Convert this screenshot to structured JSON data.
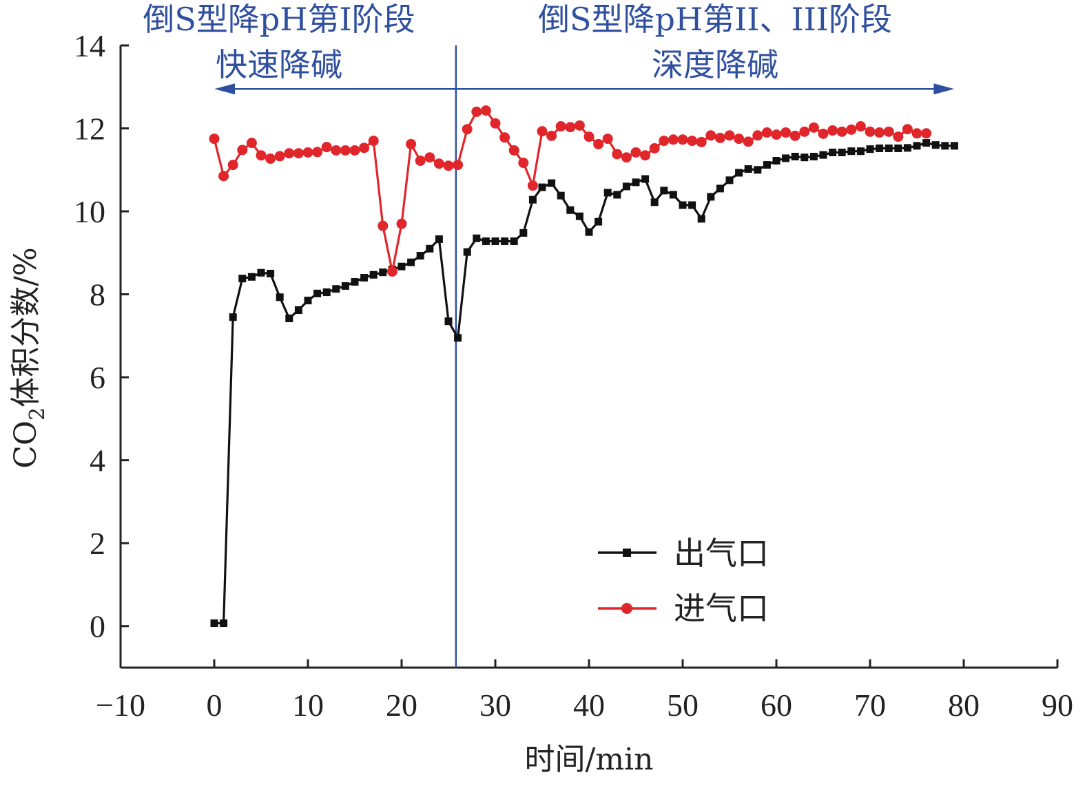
{
  "chart_data": {
    "type": "line",
    "xlabel": "时间/min",
    "ylabel": {
      "main": "CO",
      "sub": "2",
      "rest": "体积分数/%"
    },
    "xlim": [
      -10,
      90
    ],
    "ylim": [
      -1,
      14
    ],
    "xticks": [
      -10,
      0,
      10,
      20,
      30,
      40,
      50,
      60,
      70,
      80,
      90
    ],
    "yticks": [
      0,
      2,
      4,
      6,
      8,
      10,
      12,
      14
    ],
    "xtick_labels": [
      "−10",
      "0",
      "10",
      "20",
      "30",
      "40",
      "50",
      "60",
      "70",
      "80",
      "90"
    ],
    "ytick_labels": [
      "0",
      "2",
      "4",
      "6",
      "8",
      "10",
      "12",
      "14"
    ],
    "divider_x": 25.8,
    "annotations": {
      "left_line1": "倒S型降pH第I阶段",
      "left_line2": "快速降碱",
      "right_line1": "倒S型降pH第II、III阶段",
      "right_line2": "深度降碱"
    },
    "arrow": {
      "y": 12.95,
      "x_start": 0,
      "x_end": 79,
      "color": "#2f4f9f"
    },
    "legend_placement": "bottom-right",
    "series": [
      {
        "name": "出气口",
        "color": "#111111",
        "marker": "square",
        "x": [
          0,
          1,
          2,
          3,
          4,
          5,
          6,
          7,
          8,
          9,
          10,
          11,
          12,
          13,
          14,
          15,
          16,
          17,
          18,
          19,
          20,
          21,
          22,
          23,
          24,
          25,
          26,
          27,
          28,
          29,
          30,
          31,
          32,
          33,
          34,
          35,
          36,
          37,
          38,
          39,
          40,
          41,
          42,
          43,
          44,
          45,
          46,
          47,
          48,
          49,
          50,
          51,
          52,
          53,
          54,
          55,
          56,
          57,
          58,
          59,
          60,
          61,
          62,
          63,
          64,
          65,
          66,
          67,
          68,
          69,
          70,
          71,
          72,
          73,
          74,
          75,
          76,
          77,
          78,
          79
        ],
        "y": [
          0.07,
          0.07,
          7.45,
          8.38,
          8.42,
          8.52,
          8.5,
          7.93,
          7.42,
          7.62,
          7.85,
          8.02,
          8.05,
          8.13,
          8.2,
          8.3,
          8.4,
          8.47,
          8.53,
          8.6,
          8.67,
          8.77,
          8.93,
          9.1,
          9.33,
          7.35,
          6.95,
          9.02,
          9.35,
          9.28,
          9.28,
          9.28,
          9.28,
          9.48,
          10.28,
          10.58,
          10.68,
          10.38,
          10.03,
          9.88,
          9.5,
          9.75,
          10.45,
          10.4,
          10.6,
          10.7,
          10.78,
          10.22,
          10.5,
          10.4,
          10.15,
          10.15,
          9.82,
          10.35,
          10.55,
          10.75,
          10.93,
          11.02,
          11.0,
          11.12,
          11.22,
          11.28,
          11.32,
          11.3,
          11.32,
          11.36,
          11.42,
          11.42,
          11.45,
          11.45,
          11.5,
          11.52,
          11.52,
          11.52,
          11.53,
          11.58,
          11.65,
          11.6,
          11.58,
          11.58
        ]
      },
      {
        "name": "进气口",
        "color": "#e0262b",
        "marker": "circle",
        "x": [
          0,
          1,
          2,
          3,
          4,
          5,
          6,
          7,
          8,
          9,
          10,
          11,
          12,
          13,
          14,
          15,
          16,
          17,
          18,
          19,
          20,
          21,
          22,
          23,
          24,
          25,
          26,
          27,
          28,
          29,
          30,
          31,
          32,
          33,
          34,
          35,
          36,
          37,
          38,
          39,
          40,
          41,
          42,
          43,
          44,
          45,
          46,
          47,
          48,
          49,
          50,
          51,
          52,
          53,
          54,
          55,
          56,
          57,
          58,
          59,
          60,
          61,
          62,
          63,
          64,
          65,
          66,
          67,
          68,
          69,
          70,
          71,
          72,
          73,
          74,
          75,
          76
        ],
        "y": [
          11.75,
          10.85,
          11.12,
          11.48,
          11.65,
          11.35,
          11.27,
          11.33,
          11.4,
          11.4,
          11.42,
          11.43,
          11.55,
          11.47,
          11.47,
          11.47,
          11.53,
          11.7,
          9.65,
          8.55,
          9.7,
          11.62,
          11.22,
          11.3,
          11.15,
          11.1,
          11.12,
          11.98,
          12.4,
          12.43,
          12.12,
          11.78,
          11.47,
          11.17,
          10.62,
          11.93,
          11.82,
          12.05,
          12.03,
          12.07,
          11.8,
          11.62,
          11.75,
          11.38,
          11.3,
          11.42,
          11.35,
          11.52,
          11.7,
          11.73,
          11.73,
          11.7,
          11.67,
          11.83,
          11.77,
          11.83,
          11.75,
          11.68,
          11.83,
          11.9,
          11.85,
          11.9,
          11.82,
          11.92,
          12.02,
          11.87,
          11.95,
          11.92,
          11.97,
          12.05,
          11.92,
          11.9,
          11.92,
          11.8,
          11.98,
          11.88,
          11.88
        ]
      }
    ]
  }
}
